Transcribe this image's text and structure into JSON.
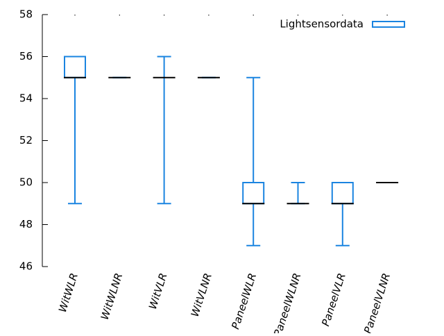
{
  "chart_data": {
    "type": "box",
    "categories": [
      "WitWLR",
      "WitWLNR",
      "WitVLR",
      "WitVLNR",
      "PaneelWLR",
      "PaneelWLNR",
      "PaneelVLR",
      "PaneelVLNR"
    ],
    "series": [
      {
        "name": "Lightsensordata",
        "color": "#1a84e0",
        "min": [
          49,
          55,
          49,
          55,
          47,
          49,
          47,
          50
        ],
        "q1": [
          55,
          55,
          55,
          55,
          49,
          49,
          49,
          50
        ],
        "median": [
          55,
          55,
          55,
          55,
          49,
          49,
          49,
          50
        ],
        "q3": [
          56,
          55,
          55,
          55,
          50,
          49,
          50,
          50
        ],
        "max": [
          56,
          55,
          56,
          55,
          55,
          50,
          50,
          50
        ]
      }
    ],
    "ylim": [
      46,
      58
    ],
    "yticks": [
      46,
      48,
      50,
      52,
      54,
      56,
      58
    ],
    "legend": "upper right"
  }
}
